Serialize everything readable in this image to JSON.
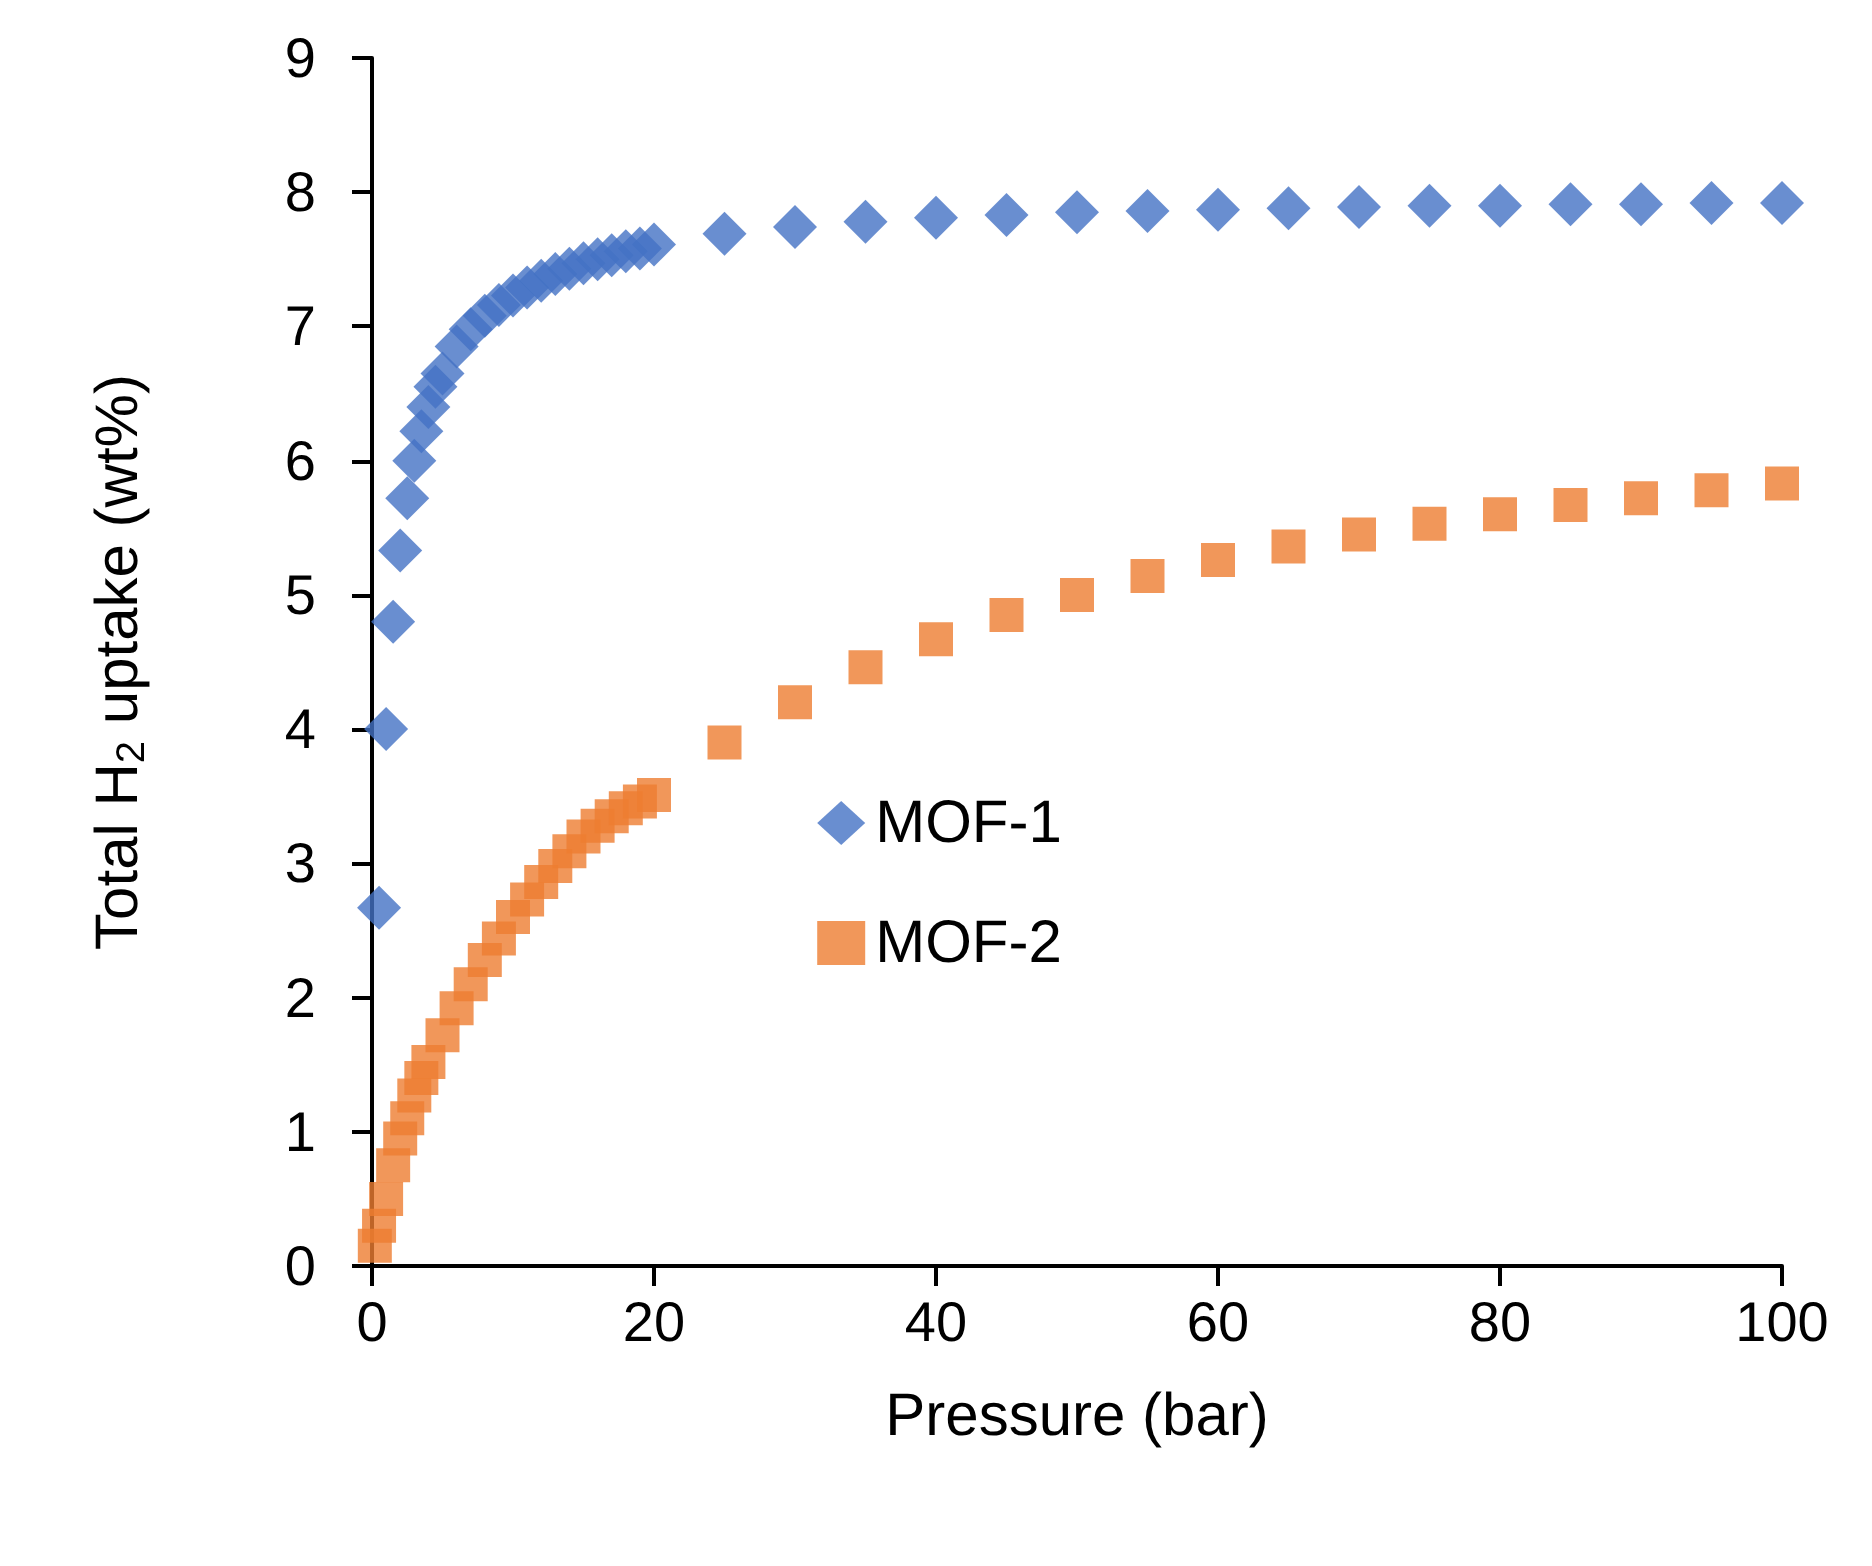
{
  "chart_data": {
    "type": "scatter",
    "xlabel": "Pressure (bar)",
    "ylabel": "Total H$_{2}$ uptake (wt%)",
    "xlim": [
      0,
      100
    ],
    "xticks": [
      0,
      20,
      40,
      60,
      80,
      100
    ],
    "ylim": [
      0,
      9
    ],
    "yticks": [
      0,
      1,
      2,
      3,
      4,
      5,
      6,
      7,
      8,
      9
    ],
    "grid": false,
    "legend": "center",
    "series": [
      {
        "name": "MOF-1",
        "color": "#4472c4",
        "marker": "diamond",
        "x": [
          0.5,
          1,
          1.5,
          2,
          2.5,
          3,
          3.5,
          4,
          4.5,
          5,
          6,
          7,
          8,
          9,
          10,
          11,
          12,
          13,
          14,
          15,
          16,
          17,
          18,
          19,
          20,
          25,
          30,
          35,
          40,
          45,
          50,
          55,
          60,
          65,
          70,
          75,
          80,
          85,
          90,
          95,
          100
        ],
        "values": [
          2.67,
          4.0,
          4.8,
          5.33,
          5.72,
          6.0,
          6.22,
          6.4,
          6.55,
          6.65,
          6.85,
          6.98,
          7.08,
          7.16,
          7.23,
          7.29,
          7.34,
          7.39,
          7.43,
          7.47,
          7.5,
          7.53,
          7.56,
          7.58,
          7.61,
          7.69,
          7.74,
          7.78,
          7.81,
          7.83,
          7.85,
          7.86,
          7.87,
          7.88,
          7.89,
          7.9,
          7.9,
          7.91,
          7.91,
          7.92,
          7.92
        ]
      },
      {
        "name": "MOF-2",
        "color": "#ed7d31",
        "marker": "square",
        "x": [
          0.2,
          0.5,
          1,
          1.5,
          2,
          2.5,
          3,
          3.5,
          4,
          5,
          6,
          7,
          8,
          9,
          10,
          11,
          12,
          13,
          14,
          15,
          16,
          17,
          18,
          19,
          20,
          25,
          30,
          35,
          40,
          45,
          50,
          55,
          60,
          65,
          70,
          75,
          80,
          85,
          90,
          95,
          100
        ],
        "values": [
          0.15,
          0.3,
          0.5,
          0.75,
          0.95,
          1.1,
          1.27,
          1.4,
          1.52,
          1.72,
          1.92,
          2.1,
          2.28,
          2.44,
          2.6,
          2.73,
          2.86,
          2.98,
          3.09,
          3.2,
          3.28,
          3.35,
          3.41,
          3.46,
          3.51,
          3.9,
          4.2,
          4.46,
          4.67,
          4.85,
          5.0,
          5.14,
          5.26,
          5.36,
          5.45,
          5.53,
          5.6,
          5.67,
          5.72,
          5.78,
          5.83
        ]
      }
    ]
  }
}
